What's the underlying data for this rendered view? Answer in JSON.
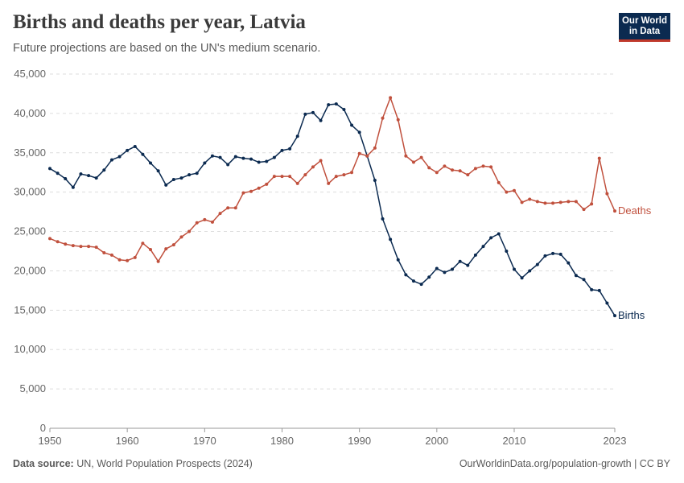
{
  "header": {
    "title": "Births and deaths per year, Latvia",
    "subtitle": "Future projections are based on the UN's medium scenario.",
    "logo_line1": "Our World",
    "logo_line2": "in Data"
  },
  "footer": {
    "source_label": "Data source:",
    "source_text": "UN, World Population Prospects (2024)",
    "url_text": "OurWorldinData.org/population-growth | CC BY"
  },
  "colors": {
    "births": "#0b2a50",
    "deaths": "#c0503d",
    "grid": "#dddddd",
    "axis_text": "#666666"
  },
  "chart_data": {
    "type": "line",
    "title": "Births and deaths per year, Latvia",
    "subtitle": "Future projections are based on the UN's medium scenario.",
    "xlim": [
      1950,
      2023
    ],
    "ylim": [
      0,
      45000
    ],
    "x_ticks": [
      1950,
      1960,
      1970,
      1980,
      1990,
      2000,
      2010,
      2023
    ],
    "y_ticks": [
      0,
      5000,
      10000,
      15000,
      20000,
      25000,
      30000,
      35000,
      40000,
      45000
    ],
    "y_tick_labels": [
      "0",
      "5,000",
      "10,000",
      "15,000",
      "20,000",
      "25,000",
      "30,000",
      "35,000",
      "40,000",
      "45,000"
    ],
    "grid": "horizontal dashed",
    "legend": "line-end labels",
    "x": [
      1950,
      1951,
      1952,
      1953,
      1954,
      1955,
      1956,
      1957,
      1958,
      1959,
      1960,
      1961,
      1962,
      1963,
      1964,
      1965,
      1966,
      1967,
      1968,
      1969,
      1970,
      1971,
      1972,
      1973,
      1974,
      1975,
      1976,
      1977,
      1978,
      1979,
      1980,
      1981,
      1982,
      1983,
      1984,
      1985,
      1986,
      1987,
      1988,
      1989,
      1990,
      1991,
      1992,
      1993,
      1994,
      1995,
      1996,
      1997,
      1998,
      1999,
      2000,
      2001,
      2002,
      2003,
      2004,
      2005,
      2006,
      2007,
      2008,
      2009,
      2010,
      2011,
      2012,
      2013,
      2014,
      2015,
      2016,
      2017,
      2018,
      2019,
      2020,
      2021,
      2022,
      2023
    ],
    "series": [
      {
        "name": "Births",
        "values": [
          33000,
          32400,
          31700,
          30600,
          32300,
          32100,
          31800,
          32800,
          34100,
          34500,
          35300,
          35800,
          34800,
          33700,
          32700,
          30900,
          31600,
          31800,
          32200,
          32400,
          33700,
          34600,
          34400,
          33500,
          34500,
          34300,
          34200,
          33800,
          33900,
          34400,
          35300,
          35500,
          37100,
          39900,
          40100,
          39100,
          41100,
          41200,
          40500,
          38500,
          37600,
          34600,
          31500,
          26600,
          24000,
          21400,
          19500,
          18700,
          18300,
          19200,
          20300,
          19800,
          20200,
          21200,
          20700,
          22000,
          23100,
          24200,
          24700,
          22500,
          20200,
          19100,
          20000,
          20800,
          21900,
          22200,
          22100,
          21000,
          19400,
          18900,
          17600,
          17500,
          15900,
          14300
        ]
      },
      {
        "name": "Deaths",
        "values": [
          24100,
          23700,
          23400,
          23200,
          23100,
          23100,
          23000,
          22300,
          22000,
          21400,
          21300,
          21700,
          23500,
          22700,
          21200,
          22800,
          23300,
          24300,
          25000,
          26100,
          26500,
          26200,
          27300,
          28000,
          28000,
          29900,
          30100,
          30500,
          31000,
          32000,
          32000,
          32000,
          31100,
          32200,
          33200,
          34000,
          31100,
          32000,
          32200,
          32500,
          34900,
          34600,
          35600,
          39400,
          42000,
          39200,
          34600,
          33800,
          34400,
          33100,
          32500,
          33300,
          32800,
          32700,
          32200,
          33000,
          33300,
          33200,
          31200,
          30000,
          30200,
          28700,
          29100,
          28800,
          28600,
          28600,
          28700,
          28800,
          28800,
          27800,
          28500,
          34300,
          29800,
          27600
        ]
      }
    ]
  }
}
